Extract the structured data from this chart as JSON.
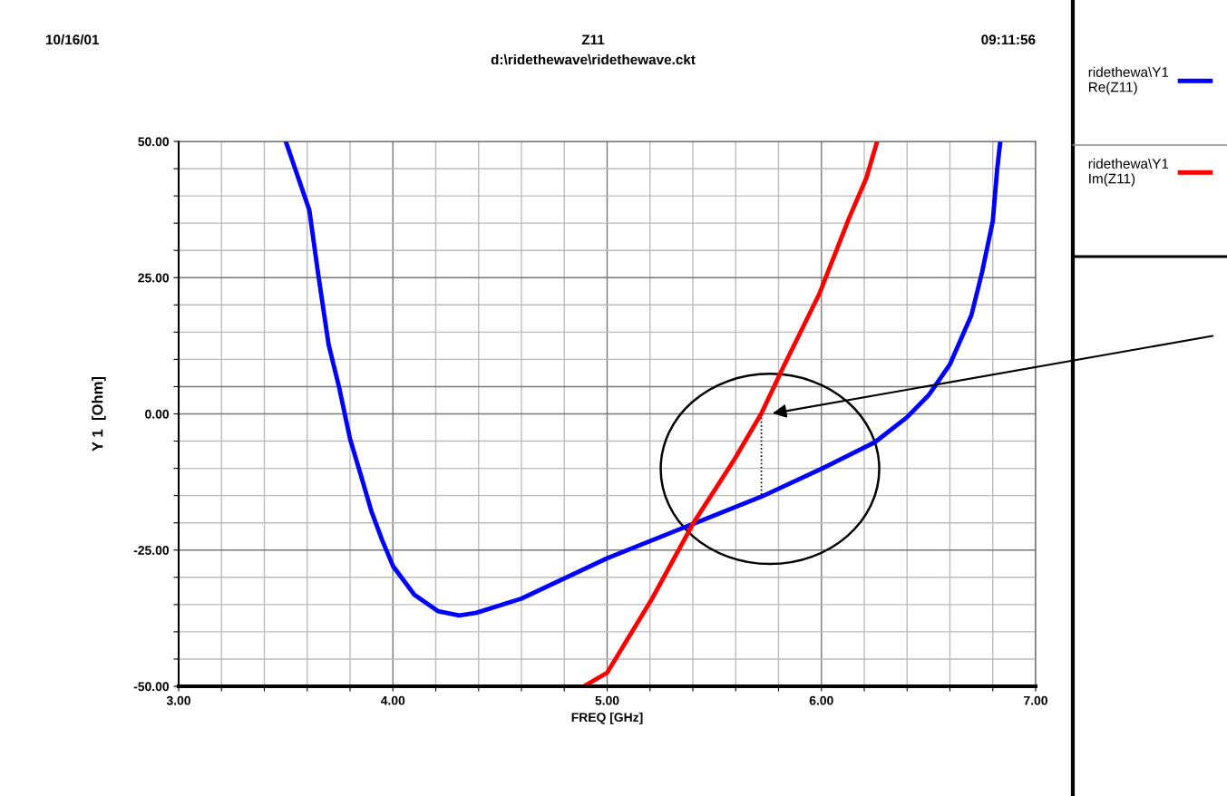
{
  "chart_data": {
    "type": "line",
    "title": "Z11",
    "subtitle": "d:\\ridethewave\\ridethewave.ckt",
    "annotations": [
      "10/16/01",
      "09:11:56"
    ],
    "xlabel": "FREQ [GHz]",
    "ylabel": "Y 1  [Ohm]",
    "xlim": [
      3,
      7
    ],
    "ylim": [
      -50,
      50
    ],
    "xticks": [
      {
        "value": 3,
        "label": "3.00"
      },
      {
        "value": 3.2,
        "label": null
      },
      {
        "value": 3.4,
        "label": null
      },
      {
        "value": 3.6,
        "label": null
      },
      {
        "value": 3.8,
        "label": null
      },
      {
        "value": 4,
        "label": "4.00"
      },
      {
        "value": 4.2,
        "label": null
      },
      {
        "value": 4.4,
        "label": null
      },
      {
        "value": 4.6,
        "label": null
      },
      {
        "value": 4.8,
        "label": null
      },
      {
        "value": 5,
        "label": "5.00"
      },
      {
        "value": 5.2,
        "label": null
      },
      {
        "value": 5.4,
        "label": null
      },
      {
        "value": 5.6,
        "label": null
      },
      {
        "value": 5.8,
        "label": null
      },
      {
        "value": 6,
        "label": "6.00"
      },
      {
        "value": 6.2,
        "label": null
      },
      {
        "value": 6.4,
        "label": null
      },
      {
        "value": 6.6,
        "label": null
      },
      {
        "value": 6.8,
        "label": null
      },
      {
        "value": 7,
        "label": "7.00"
      }
    ],
    "yticks": [
      {
        "value": -50,
        "label": "-50.00"
      },
      {
        "value": -45,
        "label": null
      },
      {
        "value": -40,
        "label": null
      },
      {
        "value": -35,
        "label": null
      },
      {
        "value": -30,
        "label": null
      },
      {
        "value": -25,
        "label": "-25.00"
      },
      {
        "value": -20,
        "label": null
      },
      {
        "value": -15,
        "label": null
      },
      {
        "value": -10,
        "label": null
      },
      {
        "value": -5,
        "label": null
      },
      {
        "value": 0,
        "label": "0.00"
      },
      {
        "value": 5,
        "label": null
      },
      {
        "value": 10,
        "label": null
      },
      {
        "value": 15,
        "label": null
      },
      {
        "value": 20,
        "label": null
      },
      {
        "value": 25,
        "label": "25.00"
      },
      {
        "value": 30,
        "label": null
      },
      {
        "value": 35,
        "label": null
      },
      {
        "value": 40,
        "label": null
      },
      {
        "value": 45,
        "label": null
      },
      {
        "value": 50,
        "label": "50.00"
      }
    ],
    "grid": true,
    "legend": "right",
    "series": [
      {
        "name": "ridethewa\\Y1\nRe(Z11)",
        "color": "#0000ff",
        "x": [
          3.5,
          3.61,
          3.65,
          3.7,
          3.75,
          3.8,
          3.85,
          3.9,
          3.95,
          4.0,
          4.1,
          4.21,
          4.31,
          4.39,
          4.6,
          4.8,
          5.0,
          5.4,
          5.72,
          6.01,
          6.25,
          6.4,
          6.5,
          6.6,
          6.7,
          6.75,
          6.8,
          6.82,
          6.835
        ],
        "values": [
          50,
          37.4,
          26.0,
          12.7,
          4.7,
          -4.6,
          -11.2,
          -17.9,
          -23.2,
          -27.9,
          -33.2,
          -36.2,
          -37.0,
          -36.5,
          -33.9,
          -30.2,
          -26.5,
          -20.2,
          -15.2,
          -9.9,
          -5.2,
          -0.6,
          3.4,
          9.1,
          18.1,
          26.0,
          35.4,
          44.7,
          50
        ]
      },
      {
        "name": "ridethewa\\Y1\nIm(Z11)",
        "color": "#ff0000",
        "x": [
          4.9,
          5.0,
          5.21,
          5.4,
          5.59,
          5.72,
          5.82,
          5.99,
          6.13,
          6.21,
          6.26
        ],
        "values": [
          -49.8,
          -47.5,
          -33.9,
          -20.2,
          -8.6,
          0.1,
          8.4,
          22.0,
          36.0,
          43.3,
          50
        ]
      },
      {
        "color": "#000000",
        "line_style": "dotted",
        "x": [
          5.72,
          5.72
        ],
        "values": [
          0,
          -15.2
        ]
      }
    ]
  }
}
